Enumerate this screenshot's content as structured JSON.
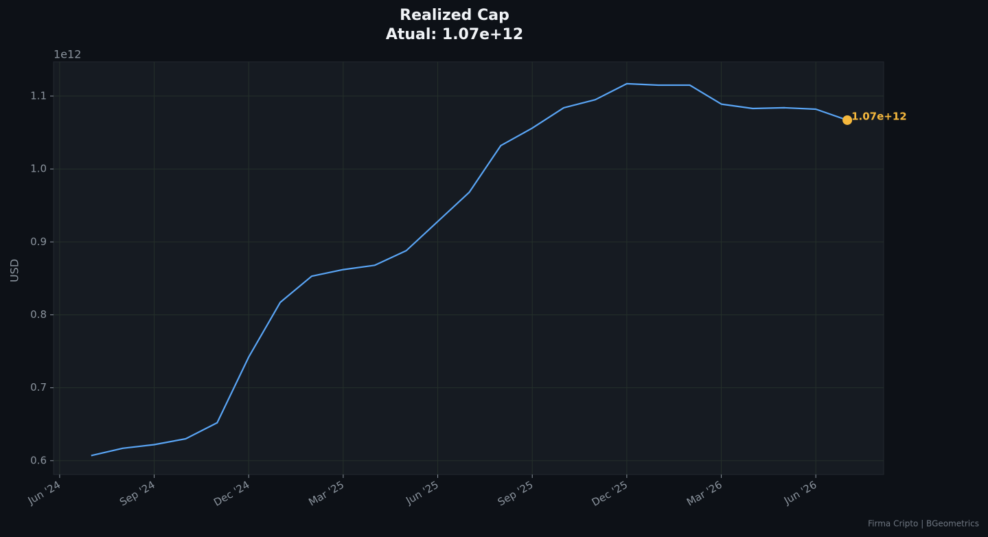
{
  "chart_data": {
    "type": "line",
    "title": "Realized Cap",
    "subtitle": "Atual: 1.07e+12",
    "y_label": "USD",
    "y_offset_label": "1e12",
    "footer": "Firma Cripto | BGeometrics",
    "x": [
      "2024-07",
      "2024-08",
      "2024-09",
      "2024-10",
      "2024-11",
      "2024-12",
      "2025-01",
      "2025-02",
      "2025-03",
      "2025-04",
      "2025-05",
      "2025-06",
      "2025-07",
      "2025-08",
      "2025-09",
      "2025-10",
      "2025-11",
      "2025-12",
      "2026-01",
      "2026-02",
      "2026-03",
      "2026-04",
      "2026-05",
      "2026-06",
      "2026-07"
    ],
    "series": [
      {
        "name": "Realized Cap",
        "color": "#5aa5f5",
        "values": [
          0.607,
          0.617,
          0.622,
          0.63,
          0.652,
          0.742,
          0.817,
          0.853,
          0.862,
          0.868,
          0.888,
          0.928,
          0.968,
          1.032,
          1.056,
          1.084,
          1.095,
          1.117,
          1.115,
          1.115,
          1.089,
          1.083,
          1.084,
          1.082,
          1.067
        ]
      }
    ],
    "annotation": {
      "x": "2026-07",
      "value": 1.067,
      "label": "1.07e+12",
      "color": "#f5b83d"
    },
    "xlim": [
      "2024-05",
      "2026-08"
    ],
    "xticks": [
      {
        "value": "2024-06",
        "label": "Jun '24"
      },
      {
        "value": "2024-09",
        "label": "Sep '24"
      },
      {
        "value": "2024-12",
        "label": "Dec '24"
      },
      {
        "value": "2025-03",
        "label": "Mar '25"
      },
      {
        "value": "2025-06",
        "label": "Jun '25"
      },
      {
        "value": "2025-09",
        "label": "Sep '25"
      },
      {
        "value": "2025-12",
        "label": "Dec '25"
      },
      {
        "value": "2026-03",
        "label": "Mar '26"
      },
      {
        "value": "2026-06",
        "label": "Jun '26"
      }
    ],
    "ylim": [
      0.581,
      1.147
    ],
    "yticks": [
      0.6,
      0.7,
      0.8,
      0.9,
      {
        "value": 1,
        "label": "1.0"
      },
      1.1
    ],
    "grid": true
  }
}
